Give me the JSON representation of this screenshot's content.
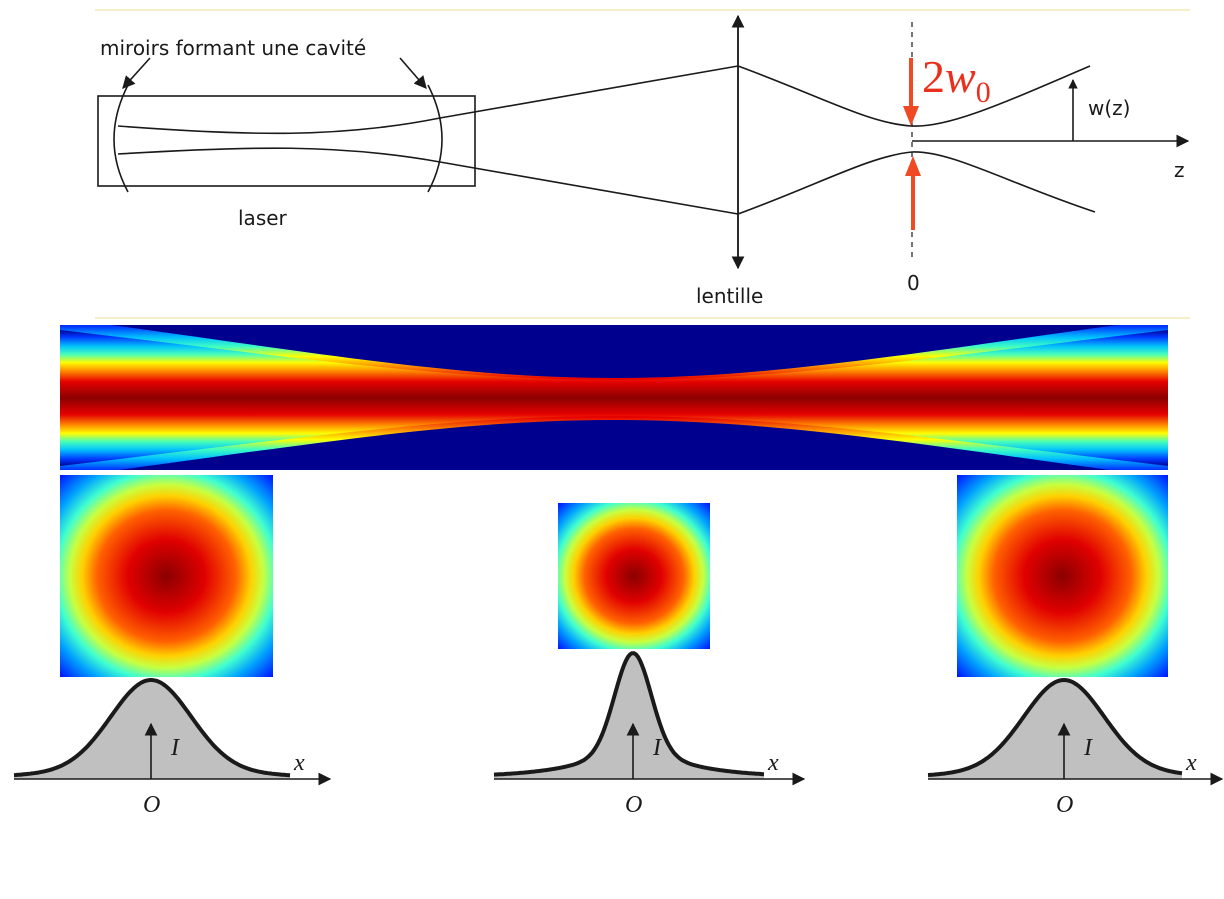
{
  "diagram": {
    "labels": {
      "mirrors": "miroirs formant une cavité",
      "laser": "laser",
      "lens": "lentille",
      "origin": "0",
      "z_axis": "z",
      "waist_radius": "w(z)",
      "waist_prefix": "2",
      "waist_var": "w",
      "waist_sub": "0"
    },
    "beam_map": {
      "colormap": [
        "#00008f",
        "#0000ff",
        "#00a0ff",
        "#00ffff",
        "#80ff80",
        "#ffff00",
        "#ff8000",
        "#ff0000",
        "#8b0000"
      ]
    },
    "cross_sections": [
      {
        "position": "left"
      },
      {
        "position": "center"
      },
      {
        "position": "right"
      }
    ],
    "profiles": [
      {
        "name": "profile-left",
        "intensity_label": "I",
        "x_label": "x",
        "origin_label": "O"
      },
      {
        "name": "profile-center",
        "intensity_label": "I",
        "x_label": "x",
        "origin_label": "O"
      },
      {
        "name": "profile-right",
        "intensity_label": "I",
        "x_label": "x",
        "origin_label": "O"
      }
    ],
    "colors": {
      "arrow": "#f04a24",
      "waist_text": "#e8301c",
      "line": "#1a1a1a",
      "fill": "#c0c0c0",
      "rule": "#f5f0c8"
    }
  }
}
